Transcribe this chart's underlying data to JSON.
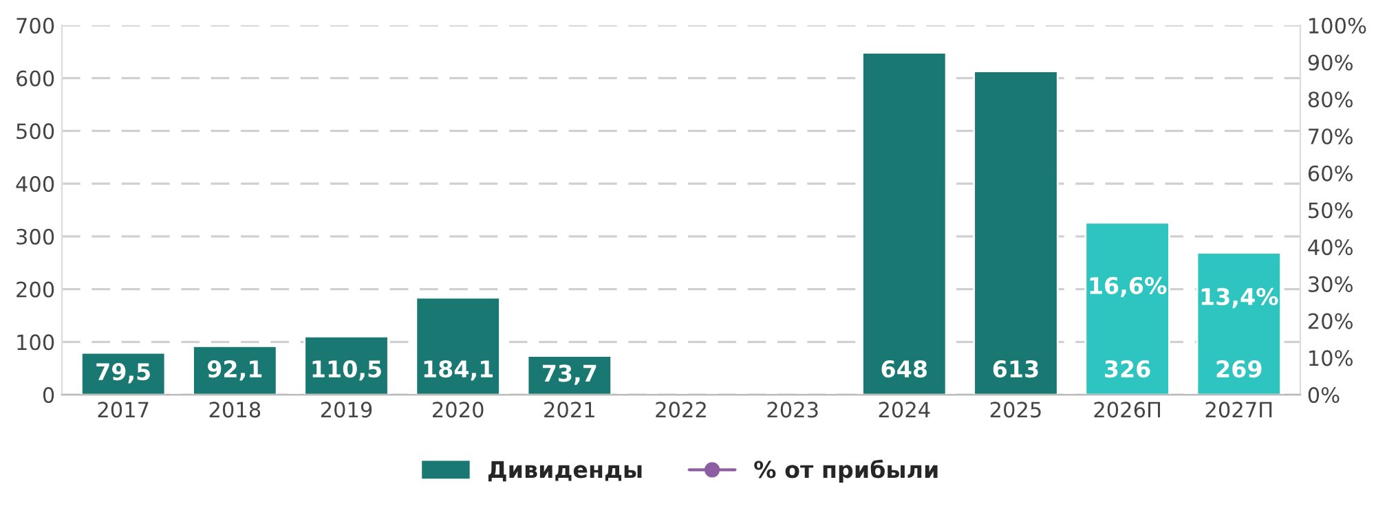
{
  "chart_data": {
    "type": "bar",
    "categories": [
      "2017",
      "2018",
      "2019",
      "2020",
      "2021",
      "2022",
      "2023",
      "2024",
      "2025",
      "2026П",
      "2027П"
    ],
    "series": [
      {
        "name": "Дивиденды",
        "color": "#1a7873",
        "colors": [
          "#1a7873",
          "#1a7873",
          "#1a7873",
          "#1a7873",
          "#1a7873",
          "#1a7873",
          "#1a7873",
          "#1a7873",
          "#1a7873",
          "#2ec4c0",
          "#2ec4c0"
        ],
        "values": [
          79.5,
          92.1,
          110.5,
          184.1,
          73.7,
          null,
          null,
          648,
          613,
          326,
          269
        ],
        "value_labels": [
          "79,5",
          "92,1",
          "110,5",
          "184,1",
          "73,7",
          null,
          null,
          "648",
          "613",
          "326",
          "269"
        ]
      },
      {
        "name": "% от прибыли",
        "type": "line",
        "color": "#8e5ea2",
        "marker": "circle",
        "values": [
          null,
          null,
          null,
          null,
          null,
          null,
          null,
          null,
          null,
          null,
          null
        ]
      }
    ],
    "annotations": [
      "16,6%",
      "13,4%"
    ],
    "ylim": [
      0,
      700
    ],
    "yticks": [
      0,
      100,
      200,
      300,
      400,
      500,
      600,
      700
    ],
    "y2lim": [
      0,
      100
    ],
    "y2ticks": [
      {
        "value": 0,
        "label": "0%"
      },
      {
        "value": 10,
        "label": "10%"
      },
      {
        "value": 20,
        "label": "20%"
      },
      {
        "value": 30,
        "label": "30%"
      },
      {
        "value": 40,
        "label": "40%"
      },
      {
        "value": 50,
        "label": "50%"
      },
      {
        "value": 60,
        "label": "60%"
      },
      {
        "value": 70,
        "label": "70%"
      },
      {
        "value": 80,
        "label": "80%"
      },
      {
        "value": 90,
        "label": "90%"
      },
      {
        "value": 100,
        "label": "100%"
      }
    ],
    "grid": "y",
    "legend": "bottom"
  }
}
